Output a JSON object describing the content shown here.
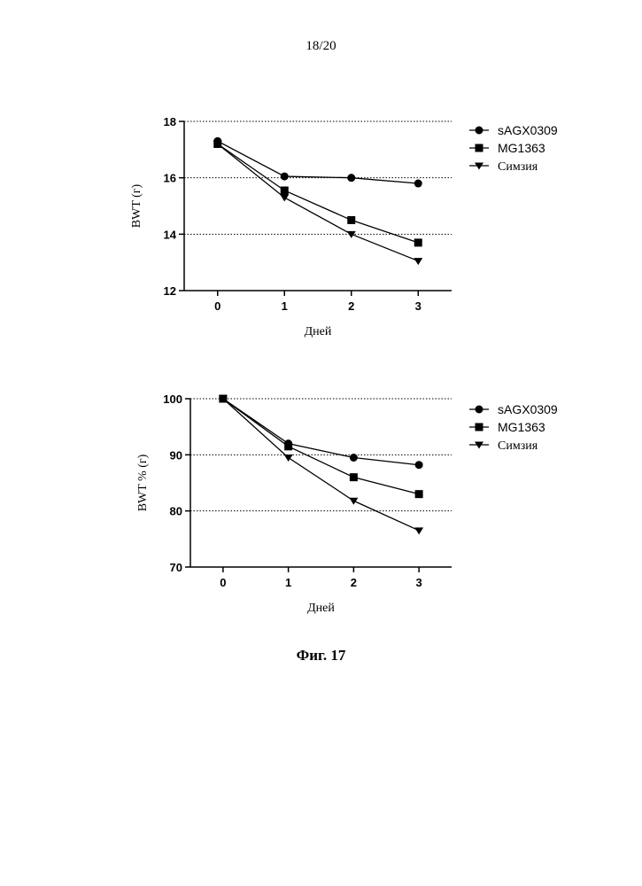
{
  "page_number": "18/20",
  "figure_caption": "Фиг. 17",
  "chart_data": [
    {
      "type": "line",
      "ylabel": "BWT (г)",
      "xlabel": "Дней",
      "x": [
        0,
        1,
        2,
        3
      ],
      "xlim": [
        -0.5,
        3.5
      ],
      "ylim": [
        12,
        18
      ],
      "yticks": [
        12,
        14,
        16,
        18
      ],
      "grid": "horizontal-dotted",
      "legend": "top-right",
      "series": [
        {
          "name": "sAGX0309",
          "marker": "circle",
          "values": [
            17.3,
            16.05,
            16.0,
            15.8
          ]
        },
        {
          "name": "MG1363",
          "marker": "square",
          "values": [
            17.2,
            15.55,
            14.5,
            13.7
          ]
        },
        {
          "name": "Симзия",
          "marker": "triangle-down",
          "values": [
            17.2,
            15.3,
            14.0,
            13.05
          ]
        }
      ]
    },
    {
      "type": "line",
      "ylabel": "BWT % (г)",
      "xlabel": "Дней",
      "x": [
        0,
        1,
        2,
        3
      ],
      "xlim": [
        -0.5,
        3.5
      ],
      "ylim": [
        70,
        100
      ],
      "yticks": [
        70,
        80,
        90,
        100
      ],
      "grid": "horizontal-dotted",
      "legend": "top-right",
      "series": [
        {
          "name": "sAGX0309",
          "marker": "circle",
          "values": [
            100,
            92.0,
            89.5,
            88.2
          ]
        },
        {
          "name": "MG1363",
          "marker": "square",
          "values": [
            100,
            91.5,
            86.0,
            83.0
          ]
        },
        {
          "name": "Симзия",
          "marker": "triangle-down",
          "values": [
            100,
            89.5,
            81.8,
            76.5
          ]
        }
      ]
    }
  ]
}
